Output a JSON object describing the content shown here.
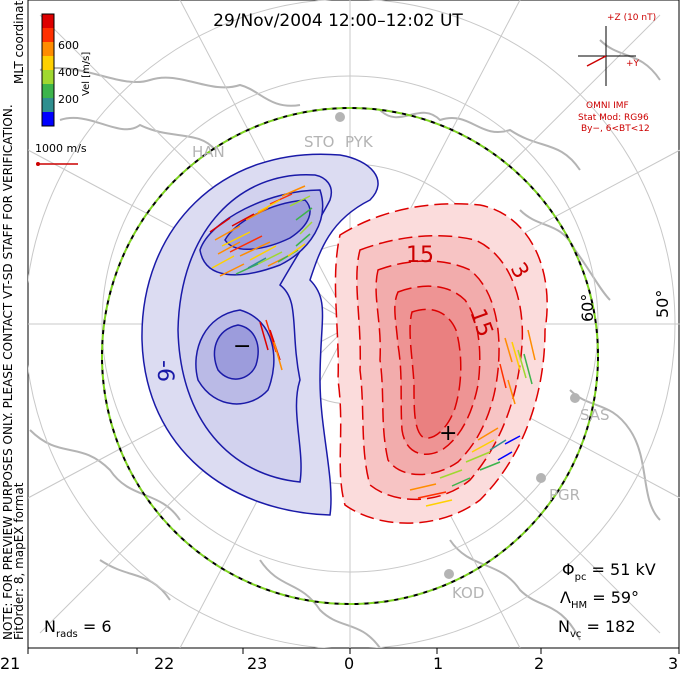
{
  "title": "29/Nov/2004 12:00–12:02 UT",
  "coords_label": "MLT coordinates",
  "note_line1": "NOTE: FOR PREVIEW PURPOSES ONLY. PLEASE CONTACT VT-SD STAFF FOR VERIFICATION.",
  "note_line2": "FitOrder: 8, mapEX format",
  "colorbar": {
    "unit_label": "Vel [m/s]",
    "ticks": [
      "600",
      "400",
      "200"
    ],
    "colors": [
      "#0000ff",
      "#2f8f8f",
      "#3cb44b",
      "#a0d830",
      "#ffd000",
      "#ff8c00",
      "#ff3000",
      "#dd0000"
    ]
  },
  "ref_vector_label": "1000 m/s",
  "imf": {
    "z_label": "+Z (10 nT)",
    "y_label": "+Y",
    "source": "OMNI IMF",
    "model_line1": "Stat Mod: RG96",
    "model_line2": "By−, 6<BT<12"
  },
  "stations": [
    "HAN",
    "STO",
    "PYK",
    "SAS",
    "PGR",
    "KOD"
  ],
  "latitude_labels": [
    "60°",
    "50°"
  ],
  "mlt_ticks": [
    "21",
    "22",
    "23",
    "0",
    "1",
    "2",
    "3"
  ],
  "contour_labels": {
    "red_15_upper": "15",
    "red_15_lower": "15",
    "red_3": "3",
    "blue_6": "-6",
    "min_marker": "−",
    "max_marker": "+"
  },
  "stats": {
    "phi_pc_label": "Φ",
    "phi_pc_sub": "pc",
    "phi_pc_value": " = 51 kV",
    "lambda_hm_label": "Λ",
    "lambda_hm_sub": "HM",
    "lambda_hm_value": " = 59°",
    "n_vc_label": "N",
    "n_vc_sub": "vc",
    "n_vc_value": " = 182",
    "n_rads_label": "N",
    "n_rads_sub": "rads",
    "n_rads_value": " = 6"
  },
  "colors": {
    "positive_cell": "#e83030",
    "negative_cell": "#2020b0",
    "grid": "#c8c8c8",
    "coastline": "#b4b4b4",
    "boundary": "#000000",
    "imf_red": "#cc0000"
  }
}
